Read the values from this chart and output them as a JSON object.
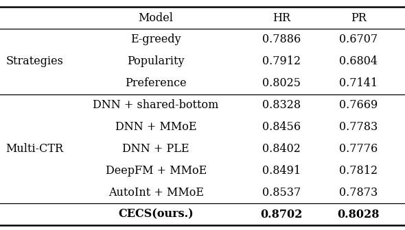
{
  "header": [
    "Model",
    "HR",
    "PR"
  ],
  "sections": [
    {
      "group_label": "Strategies",
      "rows": [
        {
          "model": "E-greedy",
          "hr": "0.7886",
          "pr": "0.6707"
        },
        {
          "model": "Popularity",
          "hr": "0.7912",
          "pr": "0.6804"
        },
        {
          "model": "Preference",
          "hr": "0.8025",
          "pr": "0.7141"
        }
      ]
    },
    {
      "group_label": "Multi-CTR",
      "rows": [
        {
          "model": "DNN + shared-bottom",
          "hr": "0.8328",
          "pr": "0.7669"
        },
        {
          "model": "DNN + MMoE",
          "hr": "0.8456",
          "pr": "0.7783"
        },
        {
          "model": "DNN + PLE",
          "hr": "0.8402",
          "pr": "0.7776"
        },
        {
          "model": "DeepFM + MMoE",
          "hr": "0.8491",
          "pr": "0.7812"
        },
        {
          "model": "AutoInt + MMoE",
          "hr": "0.8537",
          "pr": "0.7873"
        }
      ]
    }
  ],
  "last_row": {
    "group": "CECS(ours.)",
    "hr": "0.8702",
    "pr": "0.8028"
  },
  "bg_color": "#ffffff",
  "text_color": "#000000",
  "fontsize": 11.5,
  "col_group": 0.085,
  "col_model": 0.385,
  "col_hr": 0.695,
  "col_pr": 0.885,
  "thick_lw": 1.8,
  "thin_lw": 0.9
}
